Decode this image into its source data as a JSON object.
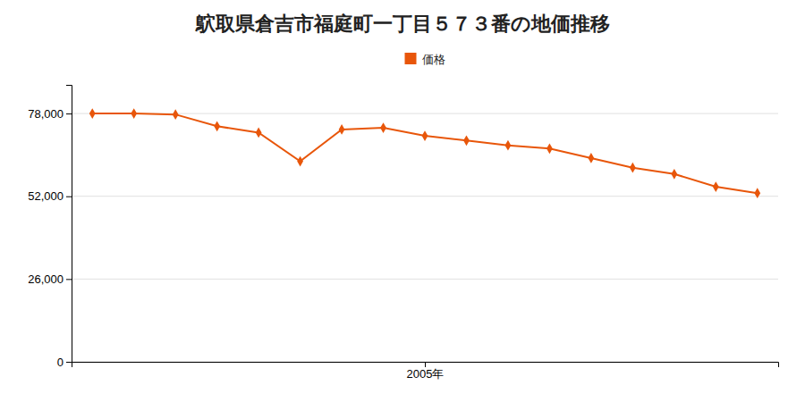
{
  "chart_data": {
    "type": "line",
    "title": "鴥取県倉吉市福庭町一丁目５７３番の地価推移",
    "x": [
      1997,
      1998,
      1999,
      2000,
      2001,
      2002,
      2003,
      2004,
      2005,
      2006,
      2007,
      2008,
      2009,
      2010,
      2011,
      2012,
      2013
    ],
    "series": [
      {
        "name": "価格",
        "color": "#e8560a",
        "marker": "diamond",
        "values": [
          78000,
          78000,
          77700,
          74000,
          72000,
          63000,
          73000,
          73500,
          71000,
          69500,
          68000,
          67000,
          64000,
          61000,
          59000,
          55000,
          53000
        ]
      }
    ],
    "xlim": [
      1996.5,
      2013.5
    ],
    "xticks": [
      {
        "value": 2005,
        "label": "2005年"
      }
    ],
    "ylim": [
      0,
      87000
    ],
    "yticks": [
      0,
      {
        "value": 26000,
        "label": "26,000"
      },
      {
        "value": 52000,
        "label": "52,000"
      },
      {
        "value": 78000,
        "label": "78,000"
      }
    ],
    "grid": true,
    "legend": "top"
  }
}
